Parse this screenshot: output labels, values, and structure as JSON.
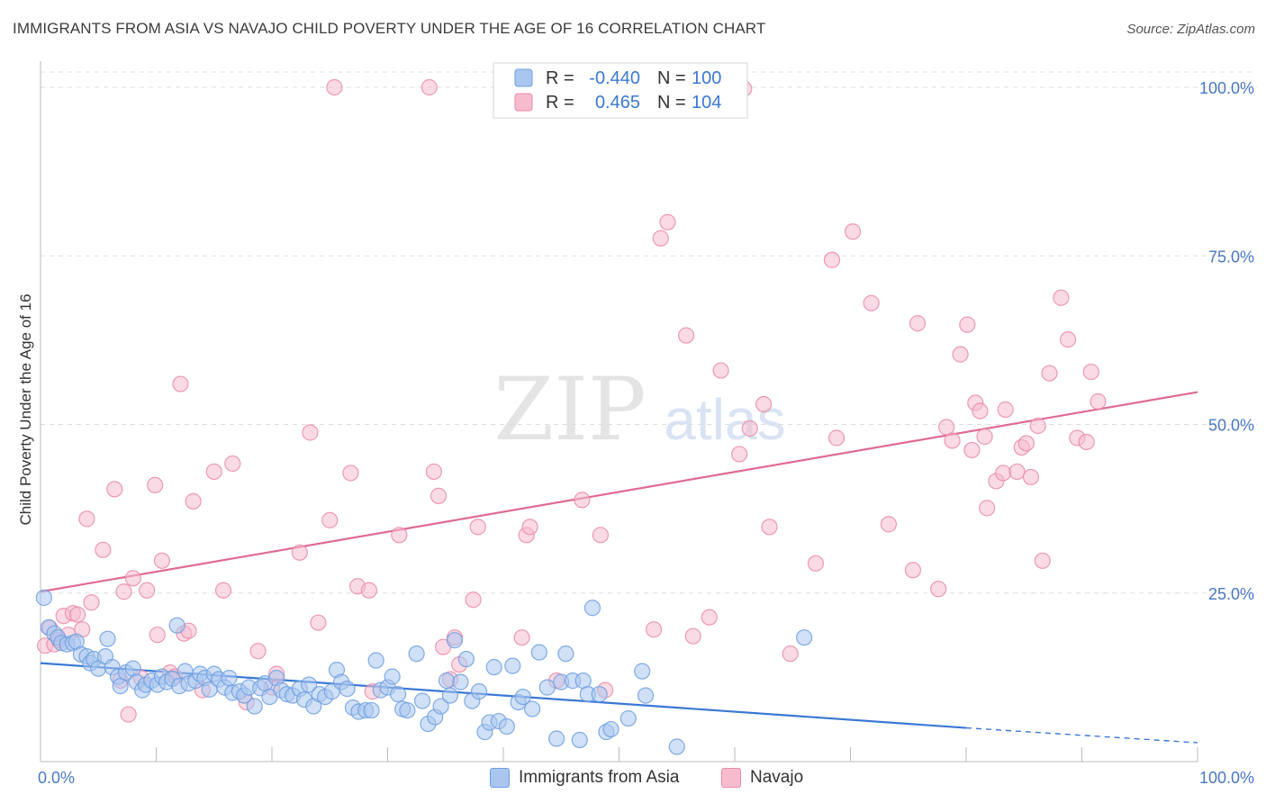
{
  "header": {
    "title": "IMMIGRANTS FROM ASIA VS NAVAJO CHILD POVERTY UNDER THE AGE OF 16 CORRELATION CHART",
    "source": "Source: ZipAtlas.com"
  },
  "watermark": {
    "zip": "ZIP",
    "atlas": "atlas"
  },
  "colors": {
    "asia_fill": "#a9c6ef",
    "asia_stroke": "#6d9de0",
    "asia_line": "#3a78d4",
    "navajo_fill": "#f6bccd",
    "navajo_stroke": "#e88aa8",
    "navajo_line": "#e06a94",
    "tick_text": "#4a78c2",
    "grid": "#dddddd"
  },
  "legend": {
    "rows": [
      {
        "r_label": "R =",
        "r_value": "-0.440",
        "n_label": "N =",
        "n_value": "100"
      },
      {
        "r_label": "R =",
        "r_value": "0.465",
        "n_label": "N =",
        "n_value": "104"
      }
    ]
  },
  "chart_data": {
    "type": "scatter",
    "title": "IMMIGRANTS FROM ASIA VS NAVAJO CHILD POVERTY UNDER THE AGE OF 16 CORRELATION CHART",
    "xlabel": "",
    "ylabel": "Child Poverty Under the Age of 16",
    "xlim": [
      0,
      100
    ],
    "ylim": [
      0,
      100
    ],
    "x_tick_labels": [
      "0.0%",
      "100.0%"
    ],
    "y_ticks": [
      {
        "value": 100,
        "label": "100.0%"
      },
      {
        "value": 75,
        "label": "75.0%"
      },
      {
        "value": 50,
        "label": "50.0%"
      },
      {
        "value": 25,
        "label": "25.0%"
      }
    ],
    "grid": true,
    "legend_position": "top-center",
    "series": [
      {
        "name": "Immigrants from Asia",
        "r": -0.44,
        "n": 100,
        "trend": {
          "x0": 0,
          "y0": 14.6,
          "x1": 80,
          "y1": 5.0,
          "dashed_to": 100,
          "dashed_y": 2.8
        },
        "points": [
          [
            0.3,
            24.3
          ],
          [
            0.7,
            19.9
          ],
          [
            1.2,
            19.0
          ],
          [
            1.5,
            18.4
          ],
          [
            1.8,
            17.6
          ],
          [
            2.3,
            17.4
          ],
          [
            2.8,
            17.6
          ],
          [
            3.1,
            17.8
          ],
          [
            3.5,
            15.9
          ],
          [
            4.0,
            15.6
          ],
          [
            4.3,
            14.6
          ],
          [
            4.6,
            15.2
          ],
          [
            5.0,
            13.8
          ],
          [
            5.6,
            15.6
          ],
          [
            5.8,
            18.2
          ],
          [
            6.2,
            14.0
          ],
          [
            6.7,
            12.6
          ],
          [
            6.9,
            11.2
          ],
          [
            7.4,
            13.2
          ],
          [
            8.0,
            13.8
          ],
          [
            8.3,
            11.8
          ],
          [
            8.8,
            10.6
          ],
          [
            9.1,
            11.4
          ],
          [
            9.6,
            12.0
          ],
          [
            10.1,
            11.4
          ],
          [
            10.5,
            12.6
          ],
          [
            10.9,
            11.8
          ],
          [
            11.4,
            12.3
          ],
          [
            11.8,
            20.2
          ],
          [
            12.0,
            11.2
          ],
          [
            12.5,
            13.4
          ],
          [
            12.8,
            11.6
          ],
          [
            13.4,
            12.0
          ],
          [
            13.8,
            13.0
          ],
          [
            14.2,
            12.4
          ],
          [
            14.6,
            10.7
          ],
          [
            15.0,
            13.0
          ],
          [
            15.4,
            12.2
          ],
          [
            15.9,
            11.0
          ],
          [
            16.3,
            12.4
          ],
          [
            16.6,
            10.2
          ],
          [
            17.2,
            10.4
          ],
          [
            17.6,
            9.8
          ],
          [
            18.0,
            11.0
          ],
          [
            18.5,
            8.2
          ],
          [
            19.0,
            10.9
          ],
          [
            19.4,
            11.6
          ],
          [
            19.8,
            9.6
          ],
          [
            20.4,
            12.4
          ],
          [
            20.8,
            10.6
          ],
          [
            21.3,
            10.0
          ],
          [
            21.8,
            9.8
          ],
          [
            22.4,
            10.8
          ],
          [
            22.8,
            9.2
          ],
          [
            23.2,
            11.4
          ],
          [
            23.6,
            8.2
          ],
          [
            24.1,
            10.0
          ],
          [
            24.6,
            9.6
          ],
          [
            25.2,
            10.4
          ],
          [
            25.6,
            13.6
          ],
          [
            26.0,
            11.8
          ],
          [
            26.5,
            10.8
          ],
          [
            27.0,
            8.0
          ],
          [
            27.5,
            7.4
          ],
          [
            28.1,
            7.6
          ],
          [
            28.6,
            7.6
          ],
          [
            29.0,
            15.0
          ],
          [
            29.4,
            10.6
          ],
          [
            30.0,
            11.0
          ],
          [
            30.4,
            12.6
          ],
          [
            30.9,
            10.0
          ],
          [
            31.3,
            7.8
          ],
          [
            31.7,
            7.6
          ],
          [
            32.5,
            16.0
          ],
          [
            33.0,
            9.0
          ],
          [
            33.5,
            5.6
          ],
          [
            34.1,
            6.6
          ],
          [
            34.6,
            8.2
          ],
          [
            35.1,
            12.0
          ],
          [
            35.4,
            9.8
          ],
          [
            35.8,
            18.0
          ],
          [
            36.3,
            11.8
          ],
          [
            36.8,
            15.2
          ],
          [
            37.3,
            9.0
          ],
          [
            37.9,
            10.4
          ],
          [
            38.4,
            4.4
          ],
          [
            38.8,
            5.8
          ],
          [
            39.2,
            14.0
          ],
          [
            39.6,
            6.0
          ],
          [
            40.3,
            5.2
          ],
          [
            40.8,
            14.2
          ],
          [
            41.3,
            8.8
          ],
          [
            41.7,
            9.6
          ],
          [
            42.5,
            7.8
          ],
          [
            43.1,
            16.2
          ],
          [
            43.8,
            11.0
          ],
          [
            44.6,
            3.4
          ],
          [
            45.0,
            11.8
          ],
          [
            45.4,
            16.0
          ],
          [
            46.0,
            12.0
          ],
          [
            46.6,
            3.2
          ],
          [
            46.9,
            12.0
          ],
          [
            47.3,
            10.0
          ],
          [
            47.7,
            22.8
          ],
          [
            48.3,
            10.0
          ],
          [
            48.9,
            4.4
          ],
          [
            49.3,
            4.8
          ],
          [
            50.8,
            6.4
          ],
          [
            52.0,
            13.4
          ],
          [
            52.3,
            9.8
          ],
          [
            55.0,
            2.2
          ],
          [
            66.0,
            18.4
          ]
        ]
      },
      {
        "name": "Navajo",
        "r": 0.465,
        "n": 104,
        "trend": {
          "x0": 0,
          "y0": 25.2,
          "x1": 100,
          "y1": 54.8
        },
        "points": [
          [
            0.4,
            17.2
          ],
          [
            0.8,
            19.8
          ],
          [
            1.2,
            17.4
          ],
          [
            1.6,
            18.0
          ],
          [
            2.0,
            21.6
          ],
          [
            2.4,
            18.8
          ],
          [
            2.8,
            22.0
          ],
          [
            3.2,
            21.8
          ],
          [
            3.6,
            19.6
          ],
          [
            4.0,
            36.0
          ],
          [
            4.4,
            23.6
          ],
          [
            5.4,
            31.4
          ],
          [
            6.4,
            40.4
          ],
          [
            6.9,
            12.0
          ],
          [
            7.2,
            25.2
          ],
          [
            7.6,
            7.0
          ],
          [
            8.0,
            27.2
          ],
          [
            8.7,
            12.4
          ],
          [
            9.2,
            25.4
          ],
          [
            9.9,
            41.0
          ],
          [
            10.1,
            18.8
          ],
          [
            10.5,
            29.8
          ],
          [
            11.2,
            13.2
          ],
          [
            11.6,
            12.6
          ],
          [
            12.1,
            56.0
          ],
          [
            12.4,
            19.0
          ],
          [
            12.8,
            19.4
          ],
          [
            13.2,
            38.6
          ],
          [
            14.0,
            10.6
          ],
          [
            15.0,
            43.0
          ],
          [
            15.8,
            25.4
          ],
          [
            16.6,
            44.2
          ],
          [
            17.8,
            8.8
          ],
          [
            18.8,
            16.4
          ],
          [
            20.0,
            11.0
          ],
          [
            20.4,
            13.0
          ],
          [
            22.4,
            31.0
          ],
          [
            23.3,
            48.8
          ],
          [
            24.0,
            20.6
          ],
          [
            25.0,
            35.8
          ],
          [
            25.4,
            100
          ],
          [
            26.8,
            42.8
          ],
          [
            27.4,
            26.0
          ],
          [
            28.4,
            25.4
          ],
          [
            28.7,
            10.4
          ],
          [
            31.0,
            33.6
          ],
          [
            33.6,
            100
          ],
          [
            34.0,
            43.0
          ],
          [
            34.4,
            39.4
          ],
          [
            34.8,
            17.0
          ],
          [
            35.4,
            12.2
          ],
          [
            35.8,
            18.4
          ],
          [
            36.2,
            14.4
          ],
          [
            37.4,
            24.0
          ],
          [
            37.8,
            34.8
          ],
          [
            39.8,
            100
          ],
          [
            41.6,
            18.4
          ],
          [
            42.0,
            33.6
          ],
          [
            42.3,
            34.8
          ],
          [
            44.6,
            12.0
          ],
          [
            46.8,
            38.8
          ],
          [
            48.4,
            33.6
          ],
          [
            48.8,
            10.6
          ],
          [
            53.0,
            19.6
          ],
          [
            53.6,
            77.6
          ],
          [
            54.2,
            80.0
          ],
          [
            55.8,
            63.2
          ],
          [
            56.4,
            18.6
          ],
          [
            57.8,
            21.4
          ],
          [
            58.8,
            58.0
          ],
          [
            60.4,
            45.6
          ],
          [
            60.8,
            99.8
          ],
          [
            61.3,
            49.4
          ],
          [
            62.5,
            53.0
          ],
          [
            63.0,
            34.8
          ],
          [
            64.8,
            16.0
          ],
          [
            67.0,
            29.4
          ],
          [
            68.4,
            74.4
          ],
          [
            68.8,
            48.0
          ],
          [
            70.2,
            78.6
          ],
          [
            71.8,
            68.0
          ],
          [
            73.3,
            35.2
          ],
          [
            75.4,
            28.4
          ],
          [
            75.8,
            65.0
          ],
          [
            77.6,
            25.6
          ],
          [
            78.3,
            49.6
          ],
          [
            78.8,
            47.6
          ],
          [
            79.5,
            60.4
          ],
          [
            80.1,
            64.8
          ],
          [
            80.5,
            46.2
          ],
          [
            80.8,
            53.2
          ],
          [
            81.2,
            52.0
          ],
          [
            81.6,
            48.2
          ],
          [
            81.8,
            37.6
          ],
          [
            82.6,
            41.6
          ],
          [
            83.2,
            42.8
          ],
          [
            83.4,
            52.2
          ],
          [
            84.4,
            43.0
          ],
          [
            84.8,
            46.6
          ],
          [
            85.2,
            47.2
          ],
          [
            85.6,
            42.2
          ],
          [
            86.2,
            49.8
          ],
          [
            86.6,
            29.8
          ],
          [
            87.2,
            57.6
          ],
          [
            88.2,
            68.8
          ],
          [
            88.8,
            62.6
          ],
          [
            89.6,
            48.0
          ],
          [
            90.4,
            47.4
          ],
          [
            90.8,
            57.8
          ],
          [
            91.4,
            53.4
          ]
        ]
      }
    ]
  },
  "bottom_legend": {
    "items": [
      {
        "label": "Immigrants from Asia"
      },
      {
        "label": "Navajo"
      }
    ]
  }
}
